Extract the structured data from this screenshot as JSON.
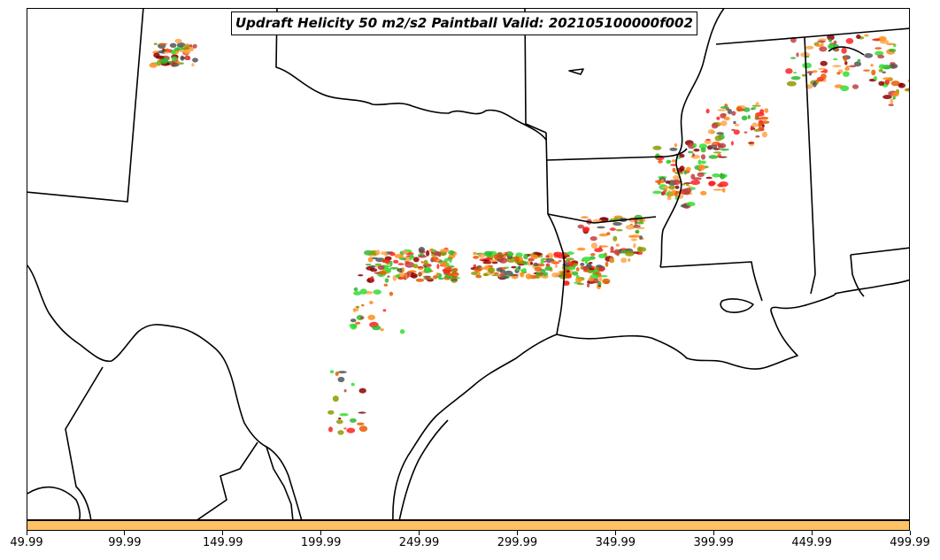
{
  "title": "Updraft Helicity 50 m2/s2 Paintball Valid: 202105100000f002",
  "colorbar": {
    "color": "#ffc266",
    "ticks": [
      "49.99",
      "99.99",
      "149.99",
      "199.99",
      "249.99",
      "299.99",
      "349.99",
      "399.99",
      "449.99",
      "499.99"
    ]
  },
  "paintball_colors": [
    "#ff2020",
    "#e65c00",
    "#ff8c1a",
    "#ffa64d",
    "#8b0000",
    "#2eb82e",
    "#33dd33",
    "#8f9900",
    "#555555",
    "#c24040"
  ],
  "legend_position": "none"
}
